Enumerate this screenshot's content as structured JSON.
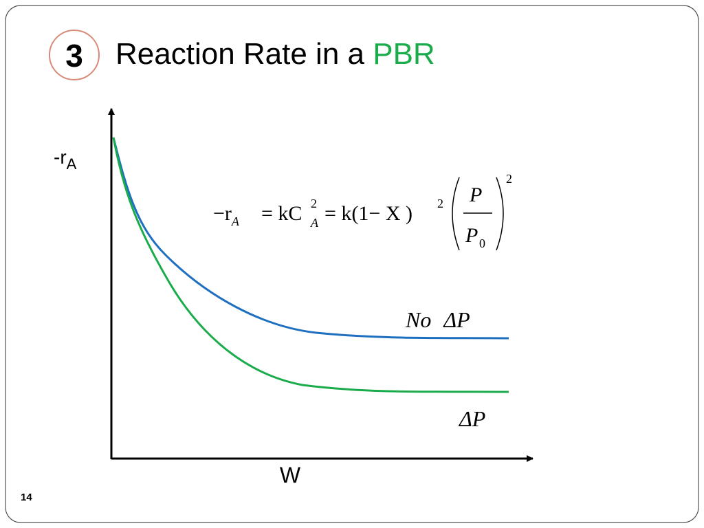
{
  "badge": "3",
  "title": {
    "text": "Reaction Rate in a",
    "highlight": "PBR"
  },
  "y_axis_label": {
    "main": "-r",
    "sub": "A"
  },
  "x_axis_label": "W",
  "equation": {
    "lhs": "−r",
    "lhs_sub": "A",
    "mid": "= kC",
    "mid_sup": "2",
    "mid_sub": "A",
    "rhs": "= k(1− X )",
    "rhs_sup": "2",
    "num": "P",
    "den": "P",
    "den_sub": "0",
    "outer_sup": "2"
  },
  "curves": [
    {
      "label_italic": "No",
      "label_delta": "ΔP"
    },
    {
      "label_delta": "ΔP"
    }
  ],
  "page_number": "14"
}
